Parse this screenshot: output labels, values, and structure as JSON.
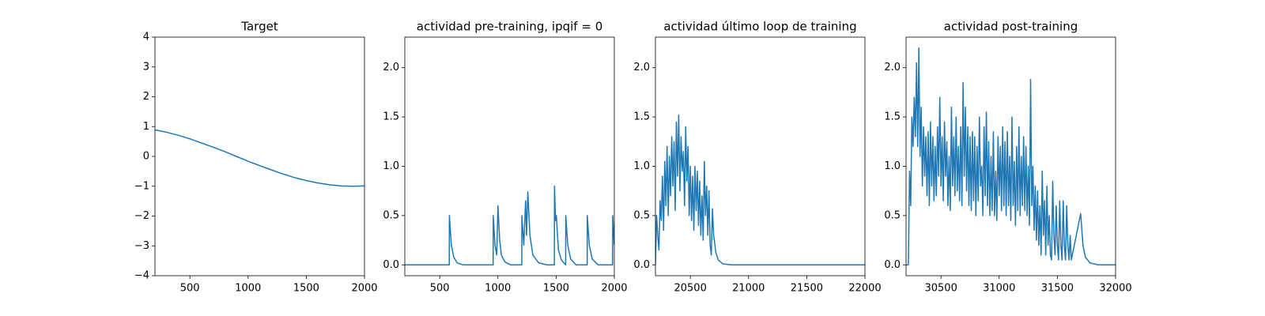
{
  "chart_data": [
    {
      "type": "line",
      "title": "Target",
      "color": "#1f77b4",
      "x": [
        200,
        300,
        400,
        500,
        600,
        700,
        800,
        900,
        1000,
        1100,
        1200,
        1300,
        1400,
        1500,
        1600,
        1700,
        1800,
        1900,
        2000
      ],
      "values": [
        0.89,
        0.81,
        0.71,
        0.59,
        0.45,
        0.31,
        0.16,
        0,
        -0.16,
        -0.31,
        -0.45,
        -0.59,
        -0.71,
        -0.81,
        -0.89,
        -0.95,
        -0.99,
        -1.0,
        -0.99
      ],
      "xlim": [
        200,
        2000
      ],
      "ylim": [
        -4,
        4
      ],
      "xticks": [
        500,
        1000,
        1500,
        2000
      ],
      "yticks": [
        {
          "value": -4,
          "label": "−4"
        },
        {
          "value": -3,
          "label": "−3"
        },
        {
          "value": -2,
          "label": "−2"
        },
        {
          "value": -1,
          "label": "−1"
        },
        0,
        1,
        2,
        3,
        4
      ]
    },
    {
      "type": "line",
      "title": "actividad pre-training, ipqif = 0",
      "color": "#1f77b4",
      "x": [
        200,
        582,
        583,
        600,
        620,
        650,
        700,
        959,
        960,
        975,
        990,
        1000,
        1015,
        1030,
        1060,
        1110,
        1205,
        1206,
        1222,
        1238,
        1246,
        1257,
        1275,
        1300,
        1350,
        1420,
        1485,
        1486,
        1495,
        1502,
        1520,
        1545,
        1582,
        1583,
        1600,
        1625,
        1670,
        1767,
        1768,
        1785,
        1810,
        1860,
        1985,
        1986,
        2000
      ],
      "values": [
        0,
        0,
        0.5,
        0.2,
        0.08,
        0.02,
        0,
        0,
        0.5,
        0.2,
        0.1,
        0.6,
        0.25,
        0.1,
        0.03,
        0,
        0,
        0.5,
        0.2,
        0.65,
        0.3,
        0.74,
        0.3,
        0.1,
        0.02,
        0,
        0,
        0.8,
        0.45,
        0.5,
        0.15,
        0.05,
        0,
        0.5,
        0.2,
        0.06,
        0,
        0,
        0.5,
        0.2,
        0.06,
        0,
        0,
        0.5,
        0.2
      ],
      "xlim": [
        200,
        2000
      ],
      "ylim": [
        -0.11,
        2.31
      ],
      "xticks": [
        500,
        1000,
        1500,
        2000
      ],
      "yticks": [
        {
          "value": 0,
          "label": "0.0"
        },
        {
          "value": 0.5,
          "label": "0.5"
        },
        {
          "value": 1,
          "label": "1.0"
        },
        {
          "value": 1.5,
          "label": "1.5"
        },
        {
          "value": 2,
          "label": "2.0"
        }
      ]
    },
    {
      "type": "line",
      "title": "actividad último loop de training",
      "color": "#1f77b4",
      "x": [
        20200,
        20210,
        20220,
        20230,
        20240,
        20250,
        20260,
        20270,
        20280,
        20290,
        20300,
        20310,
        20320,
        20330,
        20340,
        20350,
        20360,
        20370,
        20380,
        20390,
        20400,
        20410,
        20420,
        20430,
        20440,
        20450,
        20460,
        20470,
        20480,
        20490,
        20500,
        20510,
        20520,
        20530,
        20540,
        20550,
        20560,
        20570,
        20580,
        20590,
        20600,
        20610,
        20620,
        20630,
        20640,
        20650,
        20660,
        20670,
        20680,
        20690,
        20700,
        20720,
        20740,
        20780,
        20850,
        22000
      ],
      "values": [
        0,
        0.5,
        0.3,
        0.15,
        0.65,
        0.45,
        0.9,
        0.35,
        1.05,
        0.6,
        1.2,
        0.5,
        1.1,
        0.7,
        1.3,
        0.8,
        1.25,
        0.55,
        1.45,
        0.9,
        1.52,
        0.75,
        1.3,
        0.95,
        1.15,
        0.6,
        1.4,
        0.85,
        1.2,
        0.5,
        1.0,
        0.45,
        0.9,
        0.35,
        1.0,
        0.55,
        0.95,
        0.4,
        0.85,
        0.3,
        0.7,
        0.25,
        1.05,
        0.5,
        0.8,
        0.3,
        0.75,
        0.2,
        0.1,
        0.57,
        0.3,
        0.12,
        0.05,
        0.01,
        0,
        0
      ],
      "xlim": [
        20200,
        22000
      ],
      "ylim": [
        -0.11,
        2.31
      ],
      "xticks": [
        20500,
        21000,
        21500,
        22000
      ],
      "yticks": [
        {
          "value": 0,
          "label": "0.0"
        },
        {
          "value": 0.5,
          "label": "0.5"
        },
        {
          "value": 1,
          "label": "1.0"
        },
        {
          "value": 1.5,
          "label": "1.5"
        },
        {
          "value": 2,
          "label": "2.0"
        }
      ]
    },
    {
      "type": "line",
      "title": "actividad post-training",
      "color": "#1f77b4",
      "x": [
        30200,
        30220,
        30230,
        30240,
        30250,
        30260,
        30270,
        30280,
        30290,
        30300,
        30310,
        30320,
        30330,
        30340,
        30350,
        30360,
        30370,
        30380,
        30390,
        30400,
        30410,
        30420,
        30430,
        30440,
        30450,
        30460,
        30470,
        30480,
        30490,
        30500,
        30510,
        30520,
        30530,
        30540,
        30550,
        30560,
        30570,
        30580,
        30590,
        30600,
        30610,
        30620,
        30630,
        30640,
        30650,
        30660,
        30670,
        30680,
        30690,
        30700,
        30710,
        30720,
        30730,
        30740,
        30750,
        30760,
        30770,
        30780,
        30790,
        30800,
        30810,
        30820,
        30830,
        30840,
        30850,
        30860,
        30870,
        30880,
        30890,
        30900,
        30910,
        30920,
        30930,
        30940,
        30950,
        30960,
        30970,
        30980,
        30990,
        31000,
        31010,
        31020,
        31030,
        31040,
        31050,
        31060,
        31070,
        31080,
        31090,
        31100,
        31110,
        31120,
        31130,
        31140,
        31150,
        31160,
        31170,
        31180,
        31190,
        31200,
        31210,
        31220,
        31230,
        31240,
        31250,
        31260,
        31270,
        31280,
        31290,
        31300,
        31310,
        31320,
        31330,
        31340,
        31350,
        31360,
        31370,
        31380,
        31390,
        31400,
        31410,
        31420,
        31430,
        31440,
        31450,
        31460,
        31470,
        31480,
        31490,
        31500,
        31510,
        31520,
        31530,
        31540,
        31550,
        31560,
        31570,
        31580,
        31590,
        31600,
        31610,
        31620,
        31700,
        31720,
        31740,
        31780,
        31850,
        32000
      ],
      "values": [
        0,
        0,
        0.95,
        0.6,
        1.5,
        1.2,
        1.7,
        1.3,
        2.05,
        1.2,
        2.2,
        1.1,
        1.6,
        0.8,
        1.4,
        0.9,
        1.3,
        0.7,
        1.35,
        0.6,
        1.45,
        0.8,
        1.3,
        0.65,
        1.2,
        0.7,
        1.4,
        0.9,
        1.7,
        0.8,
        1.3,
        0.65,
        1.45,
        0.9,
        1.25,
        0.6,
        1.1,
        0.55,
        1.6,
        0.8,
        1.3,
        0.7,
        1.5,
        0.75,
        1.2,
        0.65,
        1.4,
        0.6,
        1.85,
        0.9,
        1.6,
        0.75,
        1.4,
        0.6,
        1.3,
        0.55,
        1.35,
        0.65,
        1.3,
        0.5,
        1.2,
        0.65,
        1.5,
        0.8,
        1.0,
        0.5,
        1.4,
        0.7,
        1.55,
        0.6,
        1.25,
        0.5,
        1.1,
        0.55,
        1.35,
        0.5,
        0.95,
        0.45,
        1.3,
        0.7,
        1.2,
        0.55,
        1.4,
        0.6,
        1.25,
        0.5,
        1.35,
        0.6,
        1.1,
        0.45,
        1.5,
        0.6,
        1.05,
        0.4,
        1.2,
        0.55,
        1.4,
        0.5,
        1.1,
        0.6,
        1.3,
        0.55,
        1.2,
        0.5,
        1.0,
        0.4,
        1.88,
        0.6,
        1.0,
        0.35,
        0.8,
        0.25,
        0.75,
        0.2,
        0.6,
        0.1,
        0.95,
        0.3,
        0.65,
        0.1,
        0.8,
        0.2,
        0.5,
        0.1,
        0.05,
        0.85,
        0.3,
        0.1,
        0.6,
        0.2,
        0.05,
        0.65,
        0.2,
        0.05,
        0.65,
        0.2,
        0.05,
        0.6,
        0.2,
        0.05,
        0.3,
        0.05,
        0.52,
        0.2,
        0.08,
        0.02,
        0,
        0
      ],
      "xlim": [
        30200,
        32000
      ],
      "ylim": [
        -0.11,
        2.31
      ],
      "xticks": [
        30500,
        31000,
        31500,
        32000
      ],
      "yticks": [
        {
          "value": 0,
          "label": "0.0"
        },
        {
          "value": 0.5,
          "label": "0.5"
        },
        {
          "value": 1,
          "label": "1.0"
        },
        {
          "value": 1.5,
          "label": "1.5"
        },
        {
          "value": 2,
          "label": "2.0"
        }
      ]
    }
  ]
}
